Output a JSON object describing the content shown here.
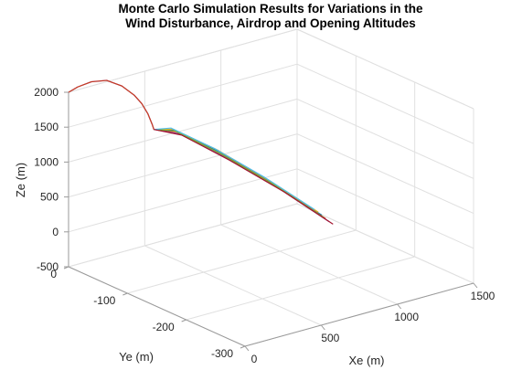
{
  "chart_data": {
    "type": "line",
    "title": [
      "Monte Carlo Simulation Results for Variations in the",
      "Wind Disturbance, Airdrop and Opening Altitudes"
    ],
    "xlabel": "Xe (m)",
    "ylabel": "Ye (m)",
    "zlabel": "Ze (m)",
    "xlim": [
      0,
      1500
    ],
    "ylim": [
      -300,
      0
    ],
    "zlim": [
      -500,
      2000
    ],
    "x_ticks": [
      0,
      500,
      1000,
      1500
    ],
    "y_ticks": [
      0,
      -100,
      -200,
      -300
    ],
    "z_ticks": [
      2000,
      1500,
      1000,
      500,
      0,
      -500
    ],
    "grid": true,
    "view": "3d",
    "series_colors": [
      "#0072BD",
      "#D95319",
      "#EDB120",
      "#7E2F8E",
      "#77AC30",
      "#4DBEEE",
      "#A2142F"
    ],
    "freefall": {
      "x": [
        0,
        60,
        150,
        250,
        350,
        430,
        480,
        520,
        550,
        560
      ],
      "y": [
        0,
        0,
        0,
        0,
        0,
        0,
        0,
        0,
        0,
        0
      ],
      "z": [
        2000,
        2040,
        2060,
        2020,
        1880,
        1700,
        1550,
        1380,
        1200,
        1130
      ]
    },
    "canopy_trajectories": [
      {
        "x": [
          560,
          620,
          720,
          820,
          910
        ],
        "y": [
          0,
          -20,
          -70,
          -135,
          -195
        ],
        "z": [
          1130,
          1160,
          980,
          720,
          430
        ]
      },
      {
        "x": [
          560,
          625,
          725,
          825,
          915
        ],
        "y": [
          0,
          -22,
          -75,
          -140,
          -200
        ],
        "z": [
          1130,
          1140,
          950,
          690,
          400
        ]
      },
      {
        "x": [
          560,
          615,
          715,
          815,
          905
        ],
        "y": [
          0,
          -18,
          -68,
          -130,
          -190
        ],
        "z": [
          1130,
          1170,
          1000,
          740,
          460
        ]
      },
      {
        "x": [
          560,
          630,
          730,
          830,
          920
        ],
        "y": [
          0,
          -25,
          -80,
          -145,
          -205
        ],
        "z": [
          1130,
          1120,
          920,
          660,
          370
        ]
      },
      {
        "x": [
          560,
          620,
          720,
          820,
          910
        ],
        "y": [
          0,
          -20,
          -72,
          -138,
          -198
        ],
        "z": [
          1130,
          1150,
          960,
          700,
          410
        ]
      },
      {
        "x": [
          560,
          610,
          710,
          810,
          900
        ],
        "y": [
          0,
          -16,
          -64,
          -125,
          -185
        ],
        "z": [
          1130,
          1180,
          1010,
          760,
          480
        ]
      },
      {
        "x": [
          560,
          635,
          735,
          835,
          925
        ],
        "y": [
          0,
          -28,
          -84,
          -150,
          -210
        ],
        "z": [
          1130,
          1110,
          900,
          640,
          350
        ]
      }
    ]
  }
}
